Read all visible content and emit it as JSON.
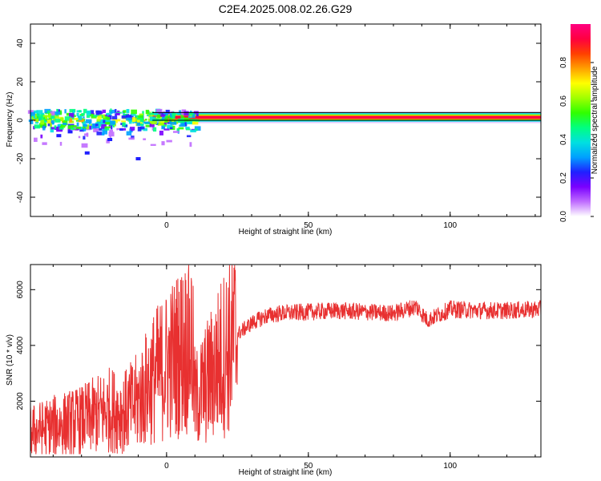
{
  "figure": {
    "title": "C2E4.2025.008.02.26.G29"
  },
  "colors": {
    "snr_line": "#e83030",
    "axes": "#000000",
    "spectrogram_dominant": "#ff2a2a",
    "spectrogram_fringe": "#c8a0ff",
    "colormap": [
      "#ffffff",
      "#c06cff",
      "#7a00ff",
      "#2020ff",
      "#00a0ff",
      "#00e0e0",
      "#00ff80",
      "#30ff00",
      "#a0ff00",
      "#ffff00",
      "#ffa000",
      "#ff4000",
      "#ff0040",
      "#ff0080"
    ]
  },
  "chart_data": [
    {
      "type": "heatmap",
      "title": "C2E4.2025.008.02.26.G29",
      "xlabel": "Height of straight line (km)",
      "ylabel": "Frequency (Hz)",
      "xlim": [
        -48,
        132
      ],
      "ylim": [
        -50,
        50
      ],
      "xticks": [
        0,
        50,
        100
      ],
      "yticks": [
        -40,
        -20,
        0,
        20,
        40
      ],
      "colorbar": {
        "label": "Normalized spectral amplitude",
        "range": [
          0,
          1
        ],
        "ticks": [
          "0.0",
          "0.2",
          "0.4",
          "0.6",
          "0.8"
        ]
      },
      "dominant_band": {
        "frequency_hz": 1.5,
        "from_km": -5,
        "to_km": 132,
        "amplitude": 0.95
      },
      "reference_lines_hz": [
        0.0,
        4.0
      ],
      "noisy_region_km": [
        -48,
        11
      ],
      "grid": false
    },
    {
      "type": "line",
      "xlabel": "Height of straight line (km)",
      "ylabel": "SNR (10 * v/v)",
      "xlim": [
        -48,
        132
      ],
      "ylim": [
        0,
        6900
      ],
      "xticks": [
        0,
        50,
        100
      ],
      "yticks": [
        2000,
        4000,
        6000
      ],
      "series": [
        {
          "x": [
            -48,
            -40,
            -30,
            -25,
            -20,
            -15,
            -10,
            -5,
            0,
            5,
            9,
            10,
            12,
            15,
            20,
            25,
            30,
            35,
            40,
            50,
            60,
            70,
            80,
            88,
            92,
            100,
            110,
            120,
            132
          ],
          "y": [
            900,
            1100,
            1300,
            1500,
            1700,
            1600,
            2000,
            2800,
            3300,
            3800,
            4200,
            2000,
            2300,
            2800,
            3700,
            4400,
            4800,
            5050,
            5150,
            5200,
            5250,
            5200,
            5150,
            5400,
            4900,
            5300,
            5250,
            5250,
            5300
          ]
        }
      ],
      "grid": false
    }
  ]
}
